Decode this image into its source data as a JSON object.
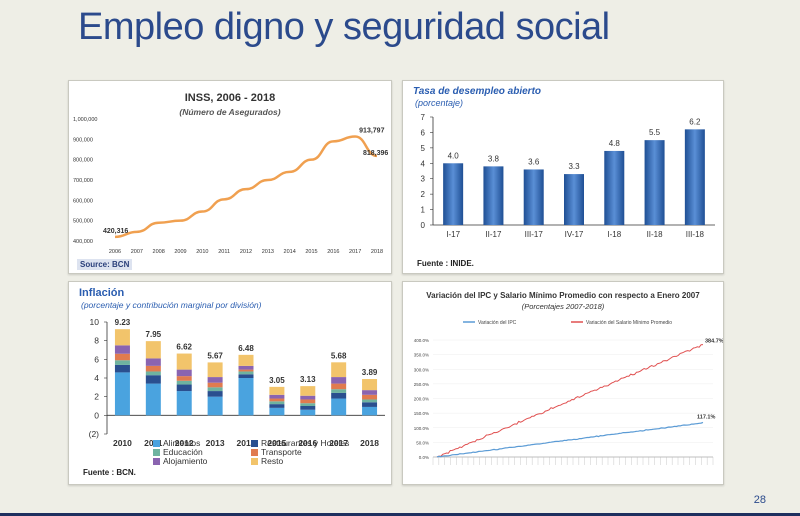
{
  "slide": {
    "title": "Empleo digno y seguridad social",
    "page_number": "28"
  },
  "colors": {
    "title": "#2b4a8c",
    "orange": "#f0a050",
    "bar_blue": "#3d6fb5",
    "ipc": "#5b9bd5",
    "salario": "#e05050"
  },
  "chart_data": [
    {
      "type": "line",
      "title": "INSS, 2006 - 2018",
      "subtitle": "(Número de Asegurados)",
      "source": "Source: BCN",
      "categories": [
        "2006",
        "2007",
        "2008",
        "2009",
        "2010",
        "2011",
        "2012",
        "2013",
        "2014",
        "2015",
        "2016",
        "2017",
        "2018"
      ],
      "series": [
        {
          "values": [
            420316,
            445000,
            490000,
            500000,
            545000,
            605000,
            655000,
            700000,
            740000,
            800000,
            890000,
            913797,
            818396
          ]
        }
      ],
      "y_ticks": [
        "1,000,000",
        "900,000",
        "800,000",
        "700,000",
        "600,000",
        "500,000",
        "400,000"
      ],
      "ylim": [
        400000,
        1000000
      ],
      "annotations": [
        "420,316",
        "913,797",
        "818,396"
      ]
    },
    {
      "type": "bar",
      "title": "Tasa de desempleo abierto",
      "subtitle": "(porcentaje)",
      "source": "Fuente : INIDE.",
      "categories": [
        "I-17",
        "II-17",
        "III-17",
        "IV-17",
        "I-18",
        "II-18",
        "III-18"
      ],
      "values": [
        4.0,
        3.8,
        3.6,
        3.3,
        4.8,
        5.5,
        6.2
      ],
      "labels": [
        "4.0",
        "3.8",
        "3.6",
        "3.3",
        "4.8",
        "5.5",
        "6.2"
      ],
      "y_ticks": [
        "7",
        "6",
        "5",
        "4",
        "3",
        "2",
        "1",
        "0"
      ],
      "ylim": [
        0,
        7
      ]
    },
    {
      "type": "bar",
      "stacked": true,
      "title": "Inflación",
      "subtitle": "(porcentaje y contribución marginal por división)",
      "source": "Fuente : BCN.",
      "categories": [
        "2010",
        "2011",
        "2012",
        "2013",
        "2014",
        "2015",
        "2016",
        "2017",
        "2018"
      ],
      "totals": [
        9.23,
        7.95,
        6.62,
        5.67,
        6.48,
        3.05,
        3.13,
        5.68,
        3.89
      ],
      "total_labels": [
        "9.23",
        "7.95",
        "6.62",
        "5.67",
        "6.48",
        "3.05",
        "3.13",
        "5.68",
        "3.89"
      ],
      "series": [
        {
          "name": "Alimentos",
          "color": "#4aa3df",
          "values": [
            4.6,
            3.4,
            2.6,
            2.0,
            4.0,
            0.8,
            0.6,
            1.8,
            0.9
          ]
        },
        {
          "name": "Restaurantes y Hoteles",
          "color": "#2a4f8f",
          "values": [
            0.8,
            0.9,
            0.7,
            0.6,
            0.4,
            0.4,
            0.4,
            0.6,
            0.5
          ]
        },
        {
          "name": "Educación",
          "color": "#6fb3a0",
          "values": [
            0.5,
            0.4,
            0.4,
            0.4,
            0.3,
            0.3,
            0.3,
            0.4,
            0.3
          ]
        },
        {
          "name": "Transporte",
          "color": "#e07b4f",
          "values": [
            0.7,
            0.6,
            0.5,
            0.5,
            0.2,
            0.3,
            0.4,
            0.6,
            0.5
          ]
        },
        {
          "name": "Alojamiento",
          "color": "#8a64b0",
          "values": [
            0.9,
            0.8,
            0.7,
            0.6,
            0.4,
            0.4,
            0.4,
            0.7,
            0.5
          ]
        },
        {
          "name": "Resto",
          "color": "#f2c46b",
          "values": [
            1.73,
            1.85,
            1.72,
            1.57,
            1.18,
            0.85,
            1.03,
            1.58,
            1.19
          ]
        }
      ],
      "y_ticks": [
        "10",
        "8",
        "6",
        "4",
        "2",
        "0",
        "(2)"
      ],
      "ylim": [
        -2,
        10
      ]
    },
    {
      "type": "line",
      "title": "Variación del IPC y Salario Mínimo Promedio con respecto a Enero 2007",
      "subtitle": "(Porcentajes 2007-2018)",
      "series": [
        {
          "name": "Variación del IPC",
          "color": "#5b9bd5",
          "start": 0,
          "end": 117.1
        },
        {
          "name": "Variación del Salario Mínimo Promedio",
          "color": "#e05050",
          "start": 0,
          "end": 384.7
        }
      ],
      "y_ticks": [
        "400.0%",
        "350.0%",
        "300.0%",
        "250.0%",
        "200.0%",
        "150.0%",
        "100.0%",
        "50.0%",
        "0.0%"
      ],
      "ylim": [
        0,
        400
      ],
      "end_labels": [
        "384.7%",
        "117.1%"
      ]
    }
  ]
}
